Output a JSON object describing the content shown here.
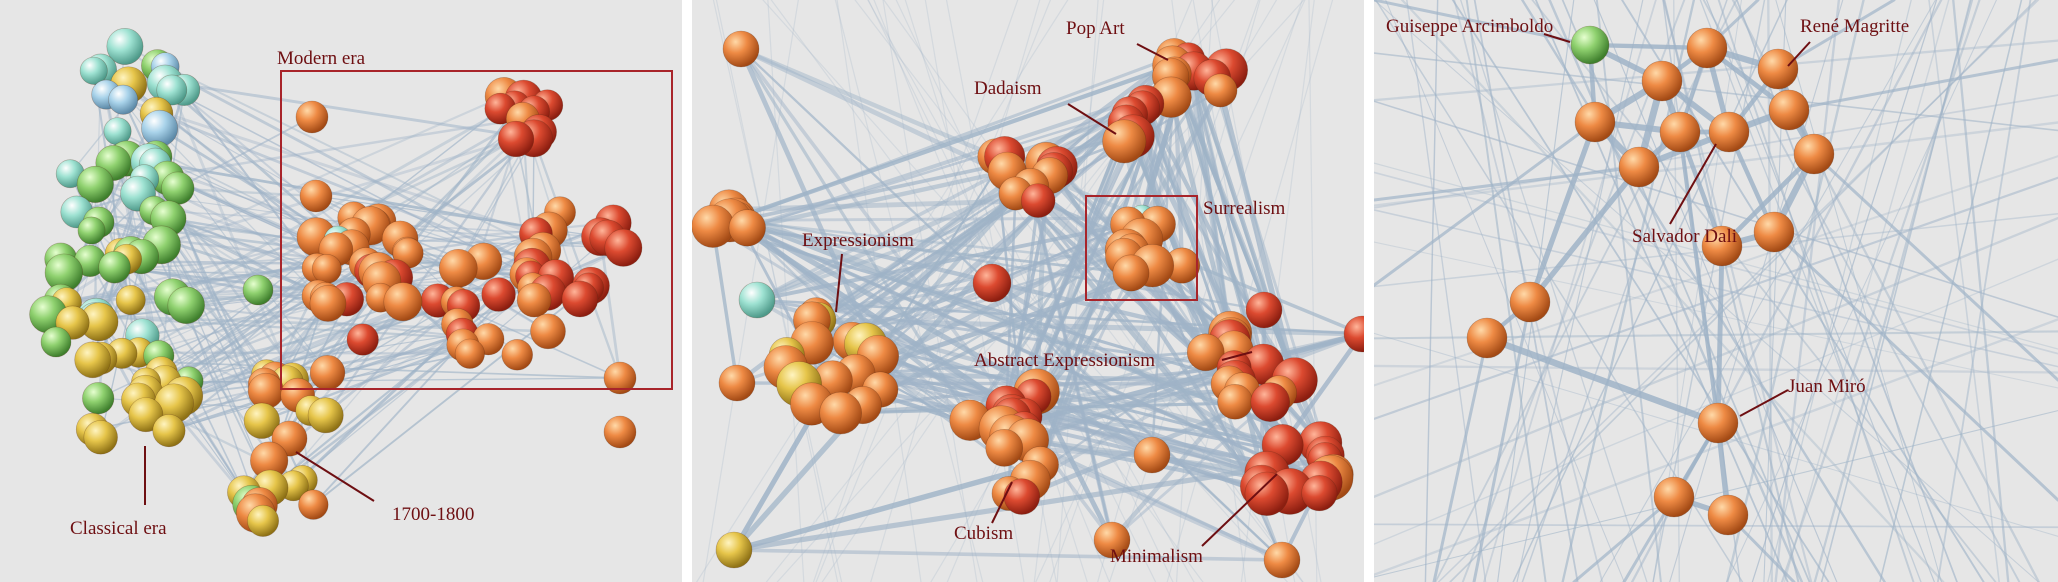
{
  "panels": [
    {
      "id": "overview",
      "labels": {
        "modern_era": "Modern era",
        "classical_era": "Classical era",
        "period_1700_1800": "1700-1800"
      }
    },
    {
      "id": "modern-era-zoom",
      "labels": {
        "pop_art": "Pop Art",
        "dadaism": "Dadaism",
        "surrealism": "Surrealism",
        "expressionism": "Expressionism",
        "abstract_expressionism": "Abstract Expressionism",
        "cubism": "Cubism",
        "minimalism": "Minimalism"
      }
    },
    {
      "id": "surrealism-zoom",
      "labels": {
        "arcimboldo": "Guiseppe Arcimboldo",
        "magritte": "René Magritte",
        "dali": "Salvador Dali",
        "miro": "Juan Miró"
      }
    }
  ],
  "colors": {
    "background": "#e6e6e6",
    "edge": "#9fb3c7",
    "highlight_box": "#a8242a",
    "label_text": "#6e0f12",
    "node_modern": "#e8833f",
    "node_red": "#d9412e",
    "node_classical_green": "#8fd16f",
    "node_classical_cyan": "#9ee2d2",
    "node_yellow": "#e6c54a",
    "node_mint": "#6fdc93"
  }
}
